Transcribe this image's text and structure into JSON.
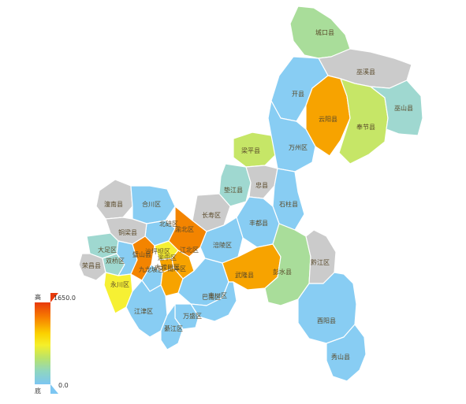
{
  "legend": {
    "high_label": "高",
    "low_label": "底",
    "max_value": "1650.0",
    "min_value": "0.0",
    "gradient": [
      "#e83a0c",
      "#f77d00",
      "#fbd100",
      "#f5ef2a",
      "#b9e36a",
      "#8fd6c0",
      "#7cc6f2"
    ]
  },
  "palette": {
    "gray": "#cbcbcb",
    "blue": "#88cdf3",
    "teal": "#9fd8d0",
    "green": "#a9dd9a",
    "lime": "#c6e667",
    "yellow": "#f6f033",
    "orange": "#f7a300",
    "darkorange": "#f38400"
  },
  "districts": [
    {
      "name": "城口县",
      "color": "green"
    },
    {
      "name": "巫溪县",
      "color": "gray"
    },
    {
      "name": "开县",
      "color": "blue"
    },
    {
      "name": "云阳县",
      "color": "orange"
    },
    {
      "name": "奉节县",
      "color": "lime"
    },
    {
      "name": "巫山县",
      "color": "teal"
    },
    {
      "name": "梁平县",
      "color": "lime"
    },
    {
      "name": "万州区",
      "color": "blue"
    },
    {
      "name": "垫江县",
      "color": "teal"
    },
    {
      "name": "忠县",
      "color": "gray"
    },
    {
      "name": "石柱县",
      "color": "blue"
    },
    {
      "name": "潼南县",
      "color": "gray"
    },
    {
      "name": "合川区",
      "color": "blue"
    },
    {
      "name": "长寿区",
      "color": "gray"
    },
    {
      "name": "北碚区",
      "color": "blue"
    },
    {
      "name": "渝北区",
      "color": "darkorange"
    },
    {
      "name": "丰都县",
      "color": "blue"
    },
    {
      "name": "铜梁县",
      "color": "gray"
    },
    {
      "name": "大足区",
      "color": "teal"
    },
    {
      "name": "荣昌县",
      "color": "gray"
    },
    {
      "name": "双桥区",
      "color": "teal"
    },
    {
      "name": "璧山县",
      "color": "blue"
    },
    {
      "name": "沙坪坝区",
      "color": "darkorange"
    },
    {
      "name": "江北区",
      "color": "yellow"
    },
    {
      "name": "渝中区",
      "color": "orange"
    },
    {
      "name": "涪陵区",
      "color": "blue"
    },
    {
      "name": "九龙坡区",
      "color": "blue"
    },
    {
      "name": "南岸区",
      "color": "orange"
    },
    {
      "name": "大渡口区",
      "color": "orange"
    },
    {
      "name": "永川区",
      "color": "yellow"
    },
    {
      "name": "江津区",
      "color": "blue"
    },
    {
      "name": "巴南区",
      "color": "blue"
    },
    {
      "name": "武隆县",
      "color": "orange"
    },
    {
      "name": "彭水县",
      "color": "green"
    },
    {
      "name": "黔江区",
      "color": "gray"
    },
    {
      "name": "南川区",
      "color": "blue"
    },
    {
      "name": "万盛区",
      "color": "blue"
    },
    {
      "name": "綦江区",
      "color": "blue"
    },
    {
      "name": "酉阳县",
      "color": "blue"
    },
    {
      "name": "秀山县",
      "color": "blue"
    }
  ]
}
